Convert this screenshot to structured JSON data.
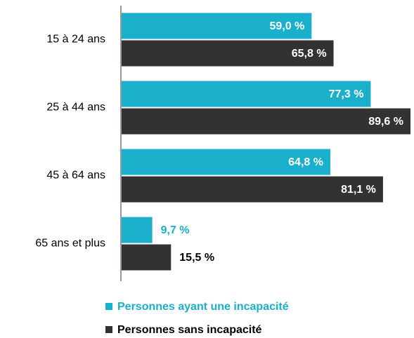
{
  "chart_data": {
    "type": "bar",
    "orientation": "horizontal",
    "categories": [
      "15 à 24 ans",
      "25 à 44 ans",
      "45 à 64 ans",
      "65 ans et plus"
    ],
    "series": [
      {
        "name": "Personnes ayant une incapacité",
        "color": "#1aafcb",
        "values": [
          59.0,
          77.3,
          64.8,
          9.7
        ],
        "value_labels": [
          "59,0 %",
          "77,3 %",
          "64,8 %",
          "9,7 %"
        ]
      },
      {
        "name": "Personnes sans incapacité",
        "color": "#333132",
        "values": [
          65.8,
          89.6,
          81.1,
          15.5
        ],
        "value_labels": [
          "65,8 %",
          "89,6 %",
          "81,1 %",
          "15,5 %"
        ]
      }
    ],
    "legend": "bottom"
  }
}
